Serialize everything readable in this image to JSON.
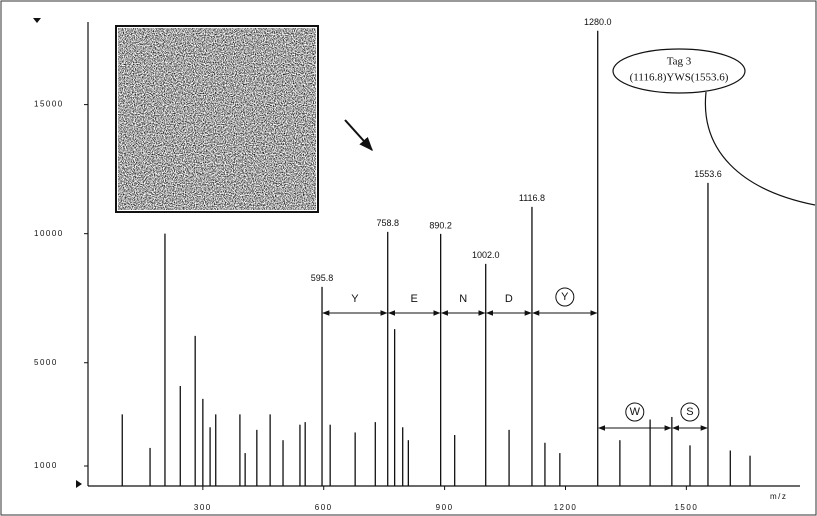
{
  "chart_data": {
    "type": "stem",
    "x_label": "m/z",
    "callout": [
      "Tag 3",
      "(1116.8)YWS(1553.6)"
    ],
    "x": [
      100,
      169,
      206,
      244,
      281,
      300,
      318,
      332,
      392,
      405,
      434,
      467,
      499,
      541,
      554,
      595.8,
      616,
      678,
      728,
      758.8,
      776,
      796,
      810,
      890.2,
      925,
      1002.0,
      1060,
      1116.8,
      1149,
      1186,
      1280.0,
      1335,
      1410,
      1464,
      1509,
      1553.6,
      1609,
      1658
    ],
    "values": [
      3000,
      1700,
      10000,
      4100,
      6040,
      3600,
      2500,
      3000,
      3000,
      1500,
      2400,
      3000,
      2000,
      2600,
      2700,
      7940,
      2600,
      2300,
      2700,
      10070,
      6300,
      2500,
      2000,
      9990,
      2200,
      8830,
      2400,
      11040,
      1900,
      1500,
      17860,
      2000,
      2800,
      2900,
      1800,
      11970,
      1600,
      1400
    ],
    "x_labels": [
      null,
      null,
      null,
      null,
      null,
      null,
      null,
      null,
      null,
      null,
      null,
      null,
      null,
      null,
      null,
      "595.8",
      null,
      null,
      null,
      "758.8",
      null,
      null,
      null,
      "890.2",
      null,
      "1002.0",
      null,
      "1116.8",
      null,
      null,
      "1280.0",
      null,
      null,
      null,
      null,
      "1553.6",
      null,
      null
    ],
    "color": "#111111",
    "ladders": [
      [
        {
          "residue": "Y",
          "from": 595.8,
          "to": 758.8,
          "circled": false
        },
        {
          "residue": "E",
          "from": 758.8,
          "to": 890.2,
          "circled": false
        },
        {
          "residue": "N",
          "from": 890.2,
          "to": 1002.0,
          "circled": false
        },
        {
          "residue": "D",
          "from": 1002.0,
          "to": 1116.8,
          "circled": false
        },
        {
          "residue": "Y",
          "from": 1116.8,
          "to": 1280.0,
          "circled": true
        }
      ],
      [
        {
          "residue": "W",
          "from": 1280.0,
          "to": 1464,
          "circled": true
        },
        {
          "residue": "S",
          "from": 1464,
          "to": 1553.6,
          "circled": true
        }
      ]
    ],
    "xlim": [
      15,
      1782
    ],
    "ylim": [
      225,
      18200
    ],
    "xticks": [
      300,
      600,
      900,
      1200,
      1500
    ],
    "yticks": [
      1000,
      5000,
      10000,
      15000
    ]
  }
}
